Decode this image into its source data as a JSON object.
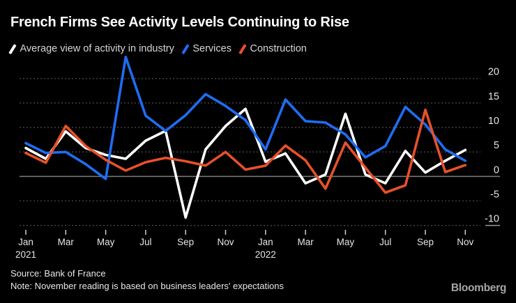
{
  "header": {
    "title": "French Firms See Activity Levels Continuing to Rise"
  },
  "legend": [
    {
      "key": "industry",
      "label": "Average view of activity in industry",
      "color": "#ffffff"
    },
    {
      "key": "services",
      "label": "Services",
      "color": "#1f6df2"
    },
    {
      "key": "construction",
      "label": "Construction",
      "color": "#e7512a"
    }
  ],
  "footer": {
    "source": "Source: Bank of France",
    "note": "Note: November reading is based on business leaders' expectations",
    "logo": "Bloomberg"
  },
  "chart_data": {
    "type": "line",
    "title": "French Firms See Activity Levels Continuing to Rise",
    "xlabel": "",
    "ylabel": "",
    "ylim": [
      -11,
      26
    ],
    "grid": "dashed horizontal, solid zero line",
    "legend_position": "top",
    "categories": [
      "Jan 2021",
      "Feb 2021",
      "Mar 2021",
      "Apr 2021",
      "May 2021",
      "Jun 2021",
      "Jul 2021",
      "Aug 2021",
      "Sep 2021",
      "Oct 2021",
      "Nov 2021",
      "Dec 2021",
      "Jan 2022",
      "Feb 2022",
      "Mar 2022",
      "Apr 2022",
      "May 2022",
      "Jun 2022",
      "Jul 2022",
      "Aug 2022",
      "Sep 2022",
      "Oct 2022",
      "Nov 2022"
    ],
    "series": [
      {
        "key": "industry",
        "name": "Average view of activity in industry",
        "color": "#ffffff",
        "values": [
          5.8,
          3.6,
          9.2,
          5.8,
          4.4,
          3.6,
          7.3,
          9.3,
          -8.4,
          5.5,
          10.3,
          13.8,
          3.0,
          4.7,
          -1.4,
          0.4,
          12.8,
          0.4,
          -1.4,
          5.2,
          0.8,
          3.2,
          5.4
        ]
      },
      {
        "key": "services",
        "name": "Services",
        "color": "#1f6df2",
        "values": [
          6.8,
          4.8,
          5.0,
          2.5,
          -0.5,
          24.4,
          12.4,
          9.3,
          12.5,
          16.8,
          14.4,
          11.5,
          5.5,
          15.7,
          11.3,
          11.0,
          8.6,
          3.9,
          6.2,
          14.2,
          10.6,
          5.5,
          3.2
        ]
      },
      {
        "key": "construction",
        "name": "Construction",
        "color": "#e7512a",
        "values": [
          4.8,
          2.8,
          10.3,
          6.2,
          3.4,
          1.2,
          2.9,
          3.8,
          3.1,
          2.2,
          5.0,
          1.4,
          2.2,
          6.3,
          3.3,
          -2.5,
          6.9,
          1.8,
          -3.3,
          -1.8,
          13.6,
          0.9,
          2.3
        ]
      }
    ],
    "yticks": [
      20,
      15,
      10,
      5,
      0,
      -5,
      -10
    ],
    "xticks": [
      {
        "i": 0,
        "label": "Jan",
        "year": "2021"
      },
      {
        "i": 2,
        "label": "Mar"
      },
      {
        "i": 4,
        "label": "May"
      },
      {
        "i": 6,
        "label": "Jul"
      },
      {
        "i": 8,
        "label": "Sep"
      },
      {
        "i": 10,
        "label": "Nov"
      },
      {
        "i": 12,
        "label": "Jan",
        "year": "2022"
      },
      {
        "i": 14,
        "label": "Mar"
      },
      {
        "i": 16,
        "label": "May"
      },
      {
        "i": 18,
        "label": "Jul"
      },
      {
        "i": 20,
        "label": "Sep"
      },
      {
        "i": 22,
        "label": "Nov"
      }
    ]
  }
}
